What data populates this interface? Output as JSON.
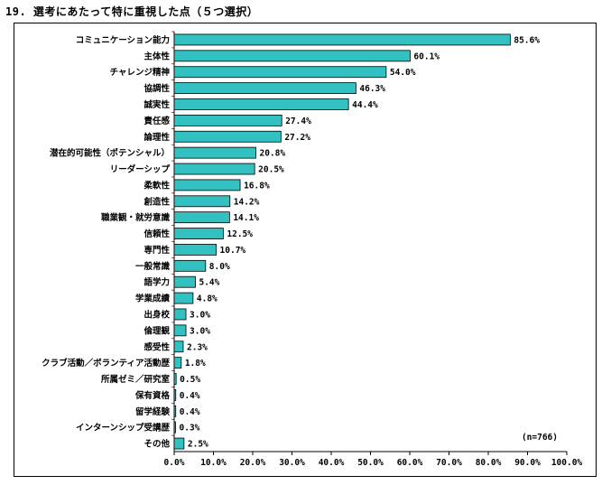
{
  "title": "19. 選考にあたって特に重視した点（５つ選択）",
  "note": "(n=766)",
  "colors": {
    "bar": "#33c0c0",
    "barStroke": "#000000"
  },
  "chart_data": {
    "type": "bar",
    "orientation": "horizontal",
    "categories": [
      "コミュニケーション能力",
      "主体性",
      "チャレンジ精神",
      "協調性",
      "誠実性",
      "責任感",
      "論理性",
      "潜在的可能性（ポテンシャル）",
      "リーダーシップ",
      "柔軟性",
      "創造性",
      "職業観・就労意識",
      "信頼性",
      "専門性",
      "一般常識",
      "語学力",
      "学業成績",
      "出身校",
      "倫理観",
      "感受性",
      "クラブ活動／ボランティア活動歴",
      "所属ゼミ／研究室",
      "保有資格",
      "留学経験",
      "インターンシップ受講歴",
      "その他"
    ],
    "values": [
      85.6,
      60.1,
      54.0,
      46.3,
      44.4,
      27.4,
      27.2,
      20.8,
      20.5,
      16.8,
      14.2,
      14.1,
      12.5,
      10.7,
      8.0,
      5.4,
      4.8,
      3.0,
      3.0,
      2.3,
      1.8,
      0.5,
      0.4,
      0.4,
      0.3,
      2.5
    ],
    "value_labels": [
      "85.6%",
      "60.1%",
      "54.0%",
      "46.3%",
      "44.4%",
      "27.4%",
      "27.2%",
      "20.8%",
      "20.5%",
      "16.8%",
      "14.2%",
      "14.1%",
      "12.5%",
      "10.7%",
      "8.0%",
      "5.4%",
      "4.8%",
      "3.0%",
      "3.0%",
      "2.3%",
      "1.8%",
      "0.5%",
      "0.4%",
      "0.4%",
      "0.3%",
      "2.5%"
    ],
    "xlim": [
      0,
      100
    ],
    "xticks": [
      "0.0%",
      "10.0%",
      "20.0%",
      "30.0%",
      "40.0%",
      "50.0%",
      "60.0%",
      "70.0%",
      "80.0%",
      "90.0%",
      "100.0%"
    ],
    "grid": false,
    "legend": "none"
  }
}
